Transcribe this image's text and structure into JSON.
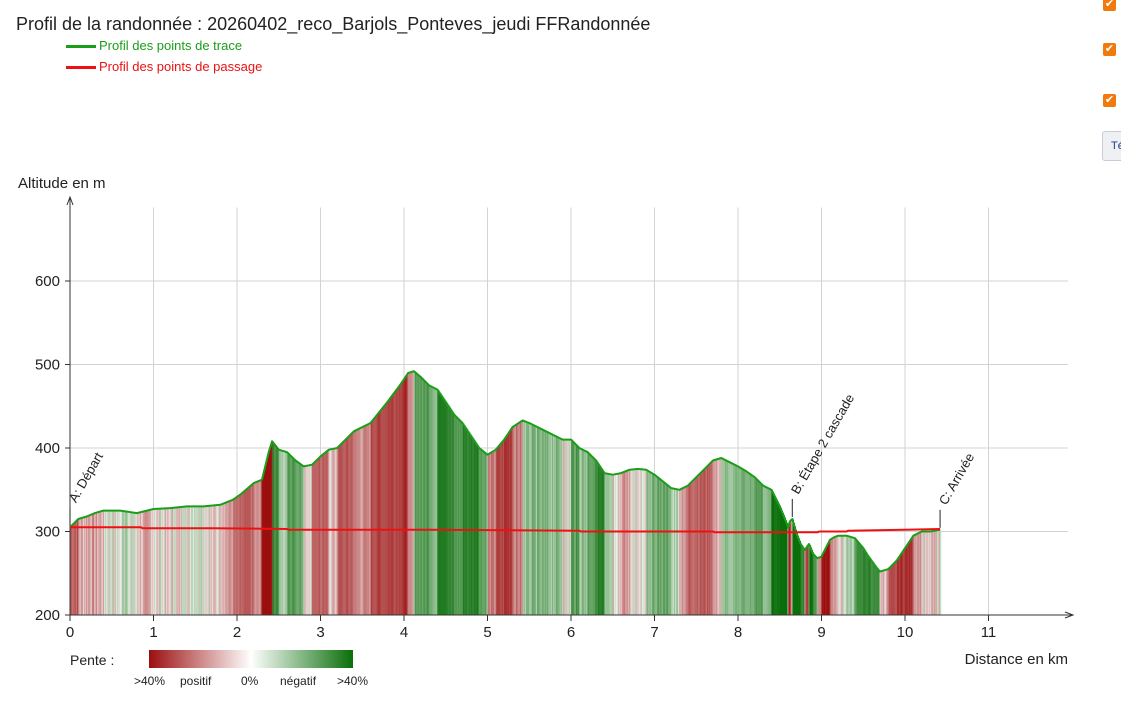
{
  "page": {
    "title": "Profil de la randonnée : 20260402_reco_Barjols_Ponteves_jeudi FFRandonnée",
    "legend": [
      {
        "label": "Profil des points de trace",
        "color": "#1a9e1a"
      },
      {
        "label": "Profil des points de passage",
        "color": "#ee1111"
      }
    ],
    "checkboxes": [
      true,
      true,
      true
    ],
    "right_button_label": "Té"
  },
  "chart_data": {
    "type": "area",
    "xlabel": "Distance en km",
    "ylabel": "Altitude en m",
    "xlim": [
      0,
      12
    ],
    "ylim": [
      200,
      700
    ],
    "xticks": [
      0,
      1,
      2,
      3,
      4,
      5,
      6,
      7,
      8,
      9,
      10,
      11
    ],
    "yticks": [
      200,
      300,
      400,
      500,
      600
    ],
    "grid": true,
    "series": [
      {
        "name": "Profil des points de trace",
        "color": "#1a9e1a",
        "x": [
          0,
          0.1,
          0.2,
          0.3,
          0.4,
          0.6,
          0.8,
          1.0,
          1.2,
          1.4,
          1.6,
          1.8,
          1.95,
          2.05,
          2.2,
          2.3,
          2.38,
          2.42,
          2.5,
          2.6,
          2.7,
          2.8,
          2.9,
          3.0,
          3.1,
          3.2,
          3.3,
          3.4,
          3.6,
          3.8,
          3.95,
          4.05,
          4.12,
          4.2,
          4.3,
          4.4,
          4.5,
          4.6,
          4.7,
          4.8,
          4.9,
          5.0,
          5.1,
          5.2,
          5.3,
          5.42,
          5.5,
          5.6,
          5.7,
          5.8,
          5.9,
          6.0,
          6.1,
          6.2,
          6.3,
          6.4,
          6.5,
          6.6,
          6.7,
          6.8,
          6.9,
          7.0,
          7.1,
          7.2,
          7.3,
          7.4,
          7.5,
          7.6,
          7.7,
          7.8,
          7.9,
          8.0,
          8.1,
          8.2,
          8.3,
          8.4,
          8.45,
          8.5,
          8.55,
          8.6,
          8.62,
          8.65,
          8.7,
          8.75,
          8.8,
          8.85,
          8.9,
          8.95,
          9.0,
          9.05,
          9.1,
          9.15,
          9.2,
          9.3,
          9.4,
          9.5,
          9.55,
          9.6,
          9.65,
          9.7,
          9.8,
          9.9,
          10.0,
          10.1,
          10.2,
          10.3,
          10.42
        ],
        "y": [
          305,
          315,
          318,
          322,
          325,
          325,
          322,
          327,
          328,
          330,
          330,
          332,
          338,
          345,
          358,
          362,
          395,
          408,
          398,
          395,
          385,
          378,
          380,
          390,
          398,
          400,
          410,
          420,
          430,
          455,
          475,
          490,
          492,
          485,
          475,
          470,
          455,
          440,
          430,
          415,
          400,
          392,
          398,
          410,
          425,
          433,
          430,
          425,
          420,
          415,
          410,
          410,
          400,
          395,
          385,
          370,
          368,
          370,
          374,
          375,
          374,
          368,
          360,
          352,
          350,
          355,
          365,
          375,
          385,
          388,
          383,
          378,
          372,
          365,
          355,
          350,
          340,
          330,
          318,
          305,
          312,
          315,
          298,
          285,
          278,
          285,
          273,
          268,
          270,
          280,
          290,
          293,
          295,
          295,
          292,
          280,
          272,
          265,
          258,
          252,
          255,
          265,
          280,
          295,
          300,
          300,
          302
        ]
      },
      {
        "name": "Profil des points de passage",
        "color": "#ee1111",
        "x": [
          0,
          0.85,
          0.87,
          1.7,
          2.6,
          2.62,
          4.3,
          6.1,
          6.12,
          7.7,
          7.72,
          8.95,
          8.97,
          9.3,
          9.32,
          10.0,
          10.42
        ],
        "y": [
          305,
          305,
          304,
          304,
          303,
          302,
          302,
          301,
          300,
          300,
          299,
          299,
          300,
          300,
          301,
          302,
          303
        ]
      }
    ],
    "waypoints": [
      {
        "label": "A: Départ",
        "x": 0.0,
        "y": 305
      },
      {
        "label": "B: Étape 2 cascade",
        "x": 8.65,
        "y": 315
      },
      {
        "label": "C: Arrivée",
        "x": 10.42,
        "y": 302
      }
    ],
    "slope_legend": {
      "title": "Pente :",
      "labels": [
        ">40%",
        "positif",
        "0%",
        "négatif",
        ">40%"
      ],
      "colors": [
        "#9b0f0f",
        "#ffffff",
        "#0a6e0a"
      ]
    }
  }
}
